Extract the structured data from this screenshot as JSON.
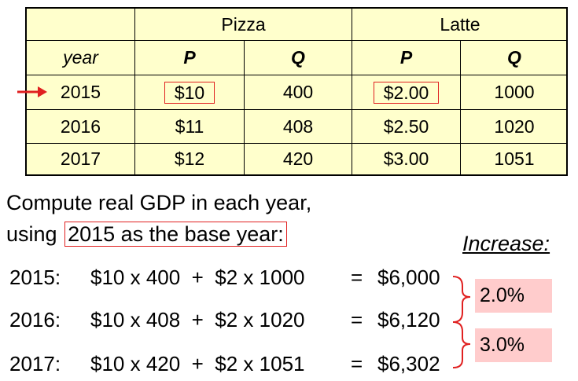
{
  "table": {
    "group_headers": [
      "Pizza",
      "Latte"
    ],
    "col_headers": [
      "year",
      "P",
      "Q",
      "P",
      "Q"
    ],
    "rows": [
      {
        "year": "2015",
        "pizza_p": "$10",
        "pizza_q": "400",
        "latte_p": "$2.00",
        "latte_q": "1000"
      },
      {
        "year": "2016",
        "pizza_p": "$11",
        "pizza_q": "408",
        "latte_p": "$2.50",
        "latte_q": "1020"
      },
      {
        "year": "2017",
        "pizza_p": "$12",
        "pizza_q": "420",
        "latte_p": "$3.00",
        "latte_q": "1051"
      }
    ]
  },
  "instructions": {
    "line1": "Compute real GDP in each year,",
    "line2_prefix": "using",
    "line2_highlight": "2015 as the base year:"
  },
  "increase_label": "Increase:",
  "equations": [
    {
      "year": "2015:",
      "expr": "$10 x 400  +  $2 x 1000",
      "eq": "=",
      "result": "$6,000"
    },
    {
      "year": "2016:",
      "expr": "$10 x 408  +  $2 x 1020",
      "eq": "=",
      "result": "$6,120"
    },
    {
      "year": "2017:",
      "expr": "$10 x 420  +  $2 x 1051",
      "eq": "=",
      "result": "$6,302"
    }
  ],
  "increases": [
    "2.0%",
    "3.0%"
  ],
  "colors": {
    "table_bg": "#ffffcc",
    "highlight": "#e02020",
    "badge_bg": "#ffcccc"
  }
}
